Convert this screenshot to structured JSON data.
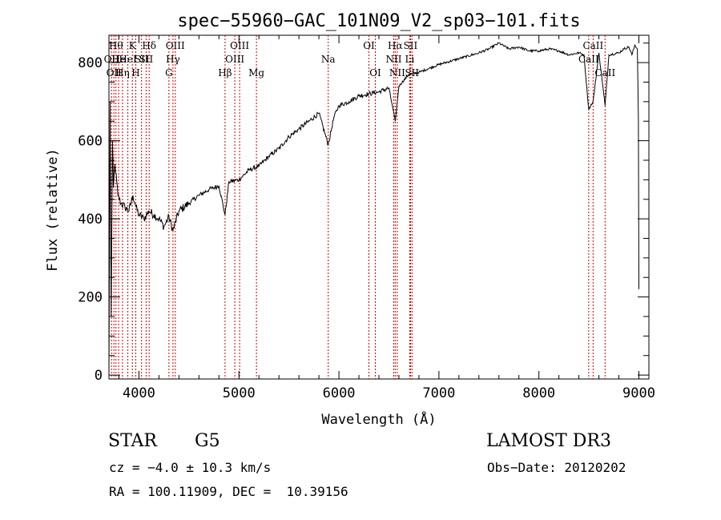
{
  "chart_data": {
    "type": "line",
    "title": "spec−55960−GAC_101N09_V2_sp03−101.fits",
    "xlabel": "Wavelength (Å)",
    "ylabel": "Flux (relative)",
    "xlim": [
      3700,
      9100
    ],
    "ylim": [
      -10,
      870
    ],
    "x_ticks": [
      4000,
      5000,
      6000,
      7000,
      8000,
      9000
    ],
    "x_tick_labels": [
      "4000",
      "5000",
      "6000",
      "7000",
      "8000",
      "9000"
    ],
    "y_ticks": [
      0,
      200,
      400,
      600,
      800
    ],
    "y_tick_labels": [
      "0",
      "200",
      "400",
      "600",
      "800"
    ],
    "grid": false,
    "spectrum_anchor_points": {
      "x": [
        3700,
        3712,
        3722,
        3735,
        3745,
        3760,
        3790,
        3820,
        3860,
        3900,
        3940,
        3970,
        4000,
        4050,
        4100,
        4150,
        4200,
        4250,
        4300,
        4340,
        4400,
        4500,
        4600,
        4700,
        4800,
        4861,
        4900,
        5000,
        5100,
        5200,
        5300,
        5400,
        5500,
        5600,
        5700,
        5800,
        5893,
        5950,
        6000,
        6100,
        6200,
        6300,
        6400,
        6500,
        6563,
        6600,
        6700,
        6800,
        6900,
        7000,
        7200,
        7400,
        7500,
        7600,
        7700,
        7800,
        7900,
        8000,
        8100,
        8200,
        8300,
        8400,
        8450,
        8498,
        8542,
        8600,
        8662,
        8700,
        8800,
        8850,
        8900,
        8930,
        8960,
        8985,
        8995,
        9000
      ],
      "values": [
        0,
        700,
        150,
        600,
        480,
        540,
        460,
        440,
        430,
        420,
        460,
        430,
        410,
        400,
        420,
        410,
        400,
        380,
        405,
        370,
        420,
        440,
        460,
        475,
        485,
        410,
        495,
        500,
        525,
        535,
        560,
        580,
        610,
        630,
        650,
        670,
        590,
        660,
        690,
        700,
        715,
        720,
        725,
        735,
        650,
        740,
        770,
        775,
        785,
        795,
        810,
        825,
        835,
        850,
        835,
        840,
        830,
        830,
        835,
        830,
        820,
        825,
        820,
        680,
        700,
        825,
        690,
        820,
        825,
        835,
        840,
        820,
        845,
        835,
        650,
        220
      ]
    },
    "line_markers": [
      {
        "wavelength": 3726,
        "label": "OII",
        "row": 2
      },
      {
        "wavelength": 3750,
        "label": "OII",
        "row": 3
      },
      {
        "wavelength": 3770,
        "label": "Hθ",
        "row": 1
      },
      {
        "wavelength": 3797,
        "label": "He",
        "row": 2
      },
      {
        "wavelength": 3835,
        "label": "Hη",
        "row": 3
      },
      {
        "wavelength": 3889,
        "label": "HeI",
        "row": 2
      },
      {
        "wavelength": 3934,
        "label": "K",
        "row": 1
      },
      {
        "wavelength": 3968,
        "label": "H",
        "row": 3
      },
      {
        "wavelength": 4026,
        "label": "SII",
        "row": 2
      },
      {
        "wavelength": 4102,
        "label": "Hδ",
        "row": 1
      },
      {
        "wavelength": 4072,
        "label": "SII",
        "row": 2
      },
      {
        "wavelength": 4300,
        "label": "G",
        "row": 3
      },
      {
        "wavelength": 4340,
        "label": "Hγ",
        "row": 2
      },
      {
        "wavelength": 4363,
        "label": "OIII",
        "row": 1
      },
      {
        "wavelength": 4861,
        "label": "Hβ",
        "row": 3
      },
      {
        "wavelength": 4959,
        "label": "OIII",
        "row": 2
      },
      {
        "wavelength": 5007,
        "label": "OIII",
        "row": 1
      },
      {
        "wavelength": 5175,
        "label": "Mg",
        "row": 3
      },
      {
        "wavelength": 5893,
        "label": "Na",
        "row": 2
      },
      {
        "wavelength": 6300,
        "label": "OI",
        "row": 1
      },
      {
        "wavelength": 6364,
        "label": "OI",
        "row": 3
      },
      {
        "wavelength": 6548,
        "label": "NII",
        "row": 2
      },
      {
        "wavelength": 6563,
        "label": "Hα",
        "row": 1
      },
      {
        "wavelength": 6583,
        "label": "NII",
        "row": 3
      },
      {
        "wavelength": 6708,
        "label": "Li",
        "row": 2
      },
      {
        "wavelength": 6716,
        "label": "SII",
        "row": 1
      },
      {
        "wavelength": 6731,
        "label": "SII",
        "row": 3
      },
      {
        "wavelength": 8498,
        "label": "CaII",
        "row": 2
      },
      {
        "wavelength": 8542,
        "label": "CaII",
        "row": 1
      },
      {
        "wavelength": 8662,
        "label": "CaII",
        "row": 3
      }
    ],
    "colors": {
      "spectrum": "#000000",
      "line_markers": "#cc0000",
      "axes": "#000000",
      "background": "#ffffff"
    }
  },
  "info": {
    "class": "STAR",
    "subclass": "G5",
    "survey": "LAMOST DR3",
    "cz": "cz = −4.0 ± 10.3 km/s",
    "obs_date": "Obs−Date: 20120202",
    "coords": "RA = 100.11909, DEC =  10.39156"
  }
}
